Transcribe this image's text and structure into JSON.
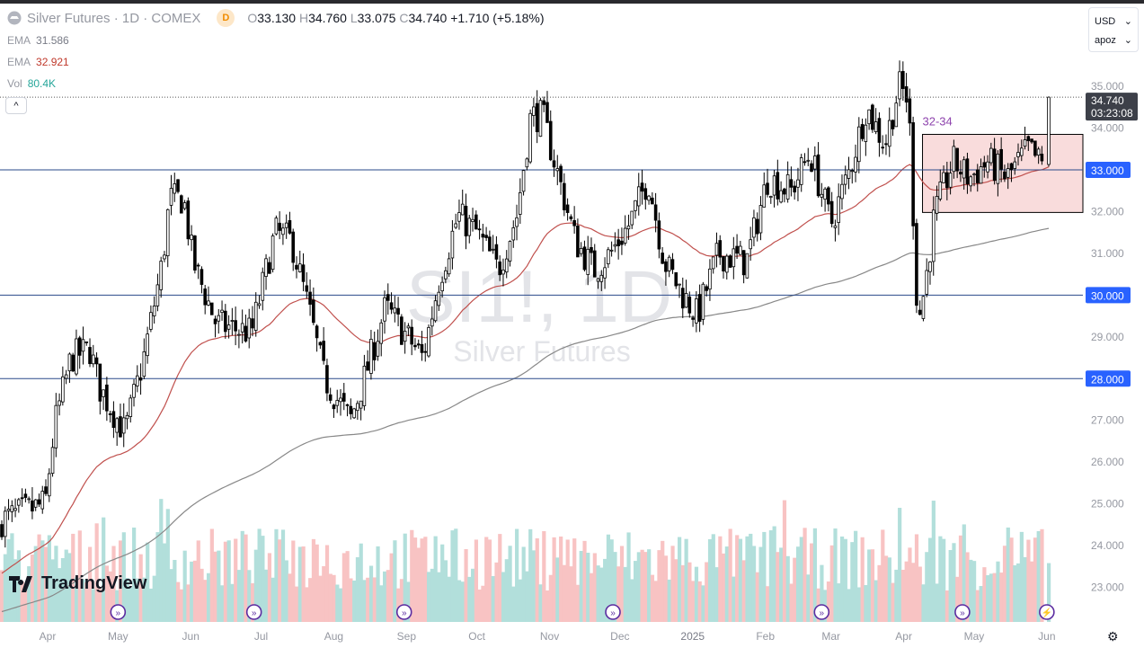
{
  "header": {
    "symbol": "Silver Futures · 1D · COMEX",
    "badge": "D",
    "ohlc": {
      "o_label": "O",
      "o": "33.130",
      "h_label": "H",
      "h": "34.760",
      "l_label": "L",
      "l": "33.075",
      "c_label": "C",
      "c": "34.740",
      "change": "+1.710 (+5.18%)"
    }
  },
  "indicators": [
    {
      "label": "EMA",
      "value": "31.586",
      "color": "#787b86"
    },
    {
      "label": "EMA",
      "value": "32.921",
      "color": "#c0392b"
    },
    {
      "label": "Vol",
      "value": "80.4K",
      "color": "#26a69a"
    }
  ],
  "collapse_label": "^",
  "currency": {
    "label": "USD",
    "scale": "apoz"
  },
  "watermark": {
    "ticker": "SI1!, 1D",
    "name": "Silver Futures"
  },
  "logo": "TradingView",
  "colors": {
    "up_body": "#ffffff",
    "down_body": "#000000",
    "ema_fast": "#c0504d",
    "ema_slow": "#888888",
    "hline": "#2a4a8a",
    "hline_label": "#2962ff",
    "box_fill": "#f8d6d6",
    "vol_up": "#b2dfdb",
    "vol_down": "#f8c3c3"
  },
  "chart_data": {
    "type": "candlestick",
    "title": "Silver Futures · 1D · COMEX",
    "ylim": [
      22.2,
      35.5
    ],
    "y_ticks": [
      "35.000",
      "34.000",
      "33.000",
      "32.000",
      "31.000",
      "30.000",
      "29.000",
      "28.000",
      "27.000",
      "26.000",
      "25.000",
      "24.000",
      "23.000"
    ],
    "x_ticks": [
      [
        "2024-04-01",
        "Apr"
      ],
      [
        "2024-05-01",
        "May"
      ],
      [
        "2024-06-01",
        "Jun"
      ],
      [
        "2024-07-01",
        "Jul"
      ],
      [
        "2024-08-01",
        "Aug"
      ],
      [
        "2024-09-01",
        "Sep"
      ],
      [
        "2024-10-01",
        "Oct"
      ],
      [
        "2024-11-01",
        "Nov"
      ],
      [
        "2024-12-01",
        "Dec"
      ],
      [
        "2025-01-01",
        "2025"
      ],
      [
        "2025-02-01",
        "Feb"
      ],
      [
        "2025-03-01",
        "Mar"
      ],
      [
        "2025-04-01",
        "Apr"
      ],
      [
        "2025-05-01",
        "May"
      ],
      [
        "2025-06-01",
        "Jun"
      ]
    ],
    "approx_closes": [
      [
        "2024-03-12",
        24.6
      ],
      [
        "2024-03-31",
        25.0
      ],
      [
        "2024-04-04",
        26.9
      ],
      [
        "2024-04-11",
        28.5
      ],
      [
        "2024-04-19",
        28.7
      ],
      [
        "2024-04-23",
        27.8
      ],
      [
        "2024-05-04",
        26.7
      ],
      [
        "2024-05-12",
        28.5
      ],
      [
        "2024-05-20",
        30.8
      ],
      [
        "2024-05-23",
        32.3
      ],
      [
        "2024-05-29",
        32.3
      ],
      [
        "2024-06-02",
        30.8
      ],
      [
        "2024-06-12",
        29.3
      ],
      [
        "2024-06-27",
        29.1
      ],
      [
        "2024-07-07",
        31.5
      ],
      [
        "2024-07-14",
        31.3
      ],
      [
        "2024-07-22",
        29.5
      ],
      [
        "2024-07-28",
        28.0
      ],
      [
        "2024-08-08",
        27.0
      ],
      [
        "2024-08-14",
        28.0
      ],
      [
        "2024-08-23",
        29.7
      ],
      [
        "2024-08-31",
        29.1
      ],
      [
        "2024-09-08",
        28.5
      ],
      [
        "2024-09-15",
        30.4
      ],
      [
        "2024-09-23",
        31.9
      ],
      [
        "2024-10-01",
        31.5
      ],
      [
        "2024-10-10",
        30.6
      ],
      [
        "2024-10-18",
        31.9
      ],
      [
        "2024-10-24",
        34.3
      ],
      [
        "2024-10-29",
        34.3
      ],
      [
        "2024-11-04",
        33.0
      ],
      [
        "2024-11-12",
        31.3
      ],
      [
        "2024-11-20",
        30.6
      ],
      [
        "2024-11-27",
        31.0
      ],
      [
        "2024-12-05",
        31.7
      ],
      [
        "2024-12-13",
        32.8
      ],
      [
        "2024-12-20",
        30.8
      ],
      [
        "2024-12-28",
        30.0
      ],
      [
        "2025-01-03",
        29.5
      ],
      [
        "2025-01-12",
        31.0
      ],
      [
        "2025-01-24",
        30.8
      ],
      [
        "2025-02-02",
        32.8
      ],
      [
        "2025-02-12",
        32.5
      ],
      [
        "2025-02-20",
        33.4
      ],
      [
        "2025-03-01",
        31.7
      ],
      [
        "2025-03-09",
        33.0
      ],
      [
        "2025-03-16",
        34.5
      ],
      [
        "2025-03-24",
        33.6
      ],
      [
        "2025-03-30",
        35.0
      ],
      [
        "2025-04-03",
        34.7
      ],
      [
        "2025-04-07",
        29.3
      ],
      [
        "2025-04-10",
        30.2
      ],
      [
        "2025-04-14",
        31.9
      ],
      [
        "2025-04-22",
        33.2
      ],
      [
        "2025-04-29",
        32.8
      ],
      [
        "2025-05-07",
        33.2
      ],
      [
        "2025-05-15",
        32.8
      ],
      [
        "2025-05-24",
        33.5
      ],
      [
        "2025-05-30",
        33.1
      ],
      [
        "2025-06-02",
        34.74
      ]
    ],
    "last_candle": {
      "open": 33.13,
      "high": 34.76,
      "low": 33.075,
      "close": 34.74
    },
    "current_price": {
      "value": "34.740",
      "countdown": "03:23:08"
    },
    "horizontal_lines": [
      {
        "price": 33.0,
        "label": "33.000"
      },
      {
        "price": 30.0,
        "label": "30.000"
      },
      {
        "price": 28.0,
        "label": "28.000"
      }
    ],
    "range_box": {
      "label": "32-34",
      "top": 33.85,
      "bottom": 31.98,
      "start": "2025-04-09",
      "end": "2025-06-15"
    },
    "ema_values": {
      "slow": 31.586,
      "fast": 32.921
    },
    "volume_last": "80.4K",
    "event_markers": [
      {
        "date": "2024-05-01",
        "type": "rollover"
      },
      {
        "date": "2024-06-28",
        "type": "rollover"
      },
      {
        "date": "2024-08-31",
        "type": "rollover"
      },
      {
        "date": "2024-11-28",
        "type": "rollover"
      },
      {
        "date": "2025-02-25",
        "type": "rollover"
      },
      {
        "date": "2025-04-26",
        "type": "rollover"
      },
      {
        "date": "2025-06-01",
        "type": "lightning"
      }
    ]
  }
}
